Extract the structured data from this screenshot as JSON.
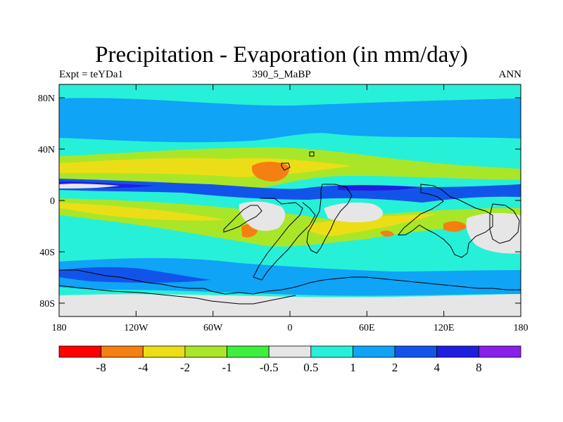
{
  "title": "Precipitation - Evaporation (in mm/day)",
  "left_label": "Expt = teYDa1",
  "center_label": "390_5_MaBP",
  "right_label": "ANN",
  "y_ticks": [
    "80N",
    "40N",
    "0",
    "40S",
    "80S"
  ],
  "x_ticks": [
    "180",
    "120W",
    "60W",
    "0",
    "60E",
    "120E",
    "180"
  ],
  "colorbar": {
    "colors": [
      "#ff0000",
      "#f57f10",
      "#ecde16",
      "#a9e628",
      "#3ef03e",
      "#e6e6e6",
      "#27f0d8",
      "#0fa4f5",
      "#1254ea",
      "#1f1ee0",
      "#8a1fe9"
    ],
    "labels": [
      "-8",
      "-4",
      "-2",
      "-1",
      "-0.5",
      "0.5",
      "1",
      "2",
      "4",
      "8"
    ]
  },
  "colors": {
    "ocean_base": "#27f0d8",
    "coastline": "#000000"
  }
}
